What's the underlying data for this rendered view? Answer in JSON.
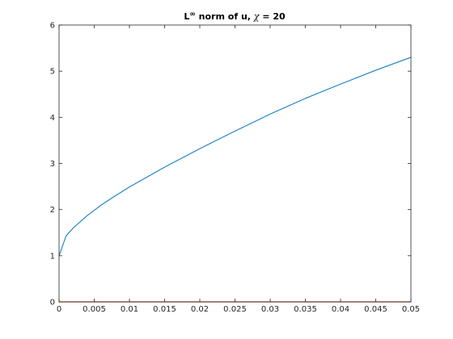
{
  "chart_data": {
    "type": "line",
    "title": "L∞ norm of u, χ = 20",
    "title_parts": {
      "prefix": "L",
      "superscript": "∞",
      "middle": " norm of u, ",
      "symbol": "χ",
      "suffix": " = 20"
    },
    "xlabel": "",
    "ylabel": "",
    "xlim": [
      0,
      0.05
    ],
    "ylim": [
      0,
      6
    ],
    "xticks": [
      0,
      0.005,
      0.01,
      0.015,
      0.02,
      0.025,
      0.03,
      0.035,
      0.04,
      0.045,
      0.05
    ],
    "xtick_labels": [
      "0",
      "0.005",
      "0.01",
      "0.015",
      "0.02",
      "0.025",
      "0.03",
      "0.035",
      "0.04",
      "0.045",
      "0.05"
    ],
    "yticks": [
      0,
      1,
      2,
      3,
      4,
      5,
      6
    ],
    "ytick_labels": [
      "0",
      "1",
      "2",
      "3",
      "4",
      "5",
      "6"
    ],
    "grid": false,
    "series": [
      {
        "color": "#0072bd",
        "x": [
          0,
          0.001,
          0.002,
          0.004,
          0.006,
          0.008,
          0.01,
          0.015,
          0.02,
          0.025,
          0.03,
          0.035,
          0.04,
          0.045,
          0.05
        ],
        "y": [
          1.0,
          1.43,
          1.6,
          1.87,
          2.1,
          2.3,
          2.49,
          2.92,
          3.32,
          3.7,
          4.07,
          4.41,
          4.72,
          5.02,
          5.3
        ]
      },
      {
        "color": "#d95319",
        "x": [
          0,
          0.05
        ],
        "y": [
          0,
          0
        ]
      }
    ]
  }
}
